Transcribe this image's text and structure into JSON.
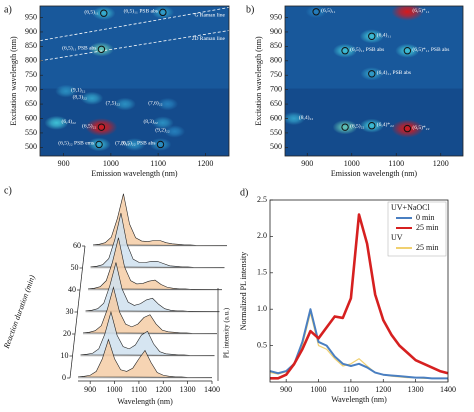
{
  "chart_data": [
    {
      "type": "heatmap",
      "panel_label": "a)",
      "x_label": "Emission wavelength (nm)",
      "y_label": "Excitation wavelength (nm)",
      "xlim": [
        850,
        1250
      ],
      "ylim": [
        470,
        990
      ],
      "xticks": [
        900,
        1000,
        1100,
        1200
      ],
      "yticks": [
        500,
        550,
        600,
        650,
        700,
        750,
        800,
        850,
        900,
        950
      ],
      "peaks": [
        {
          "label": "(6,5)₁₁",
          "x": 985,
          "y": 965,
          "intensity": 0.45,
          "circle": true
        },
        {
          "label": "(6,5)₁₁ PSB abs",
          "x": 1110,
          "y": 968,
          "intensity": 0.4,
          "circle": true
        },
        {
          "label": "(6,5)₁₁ PSB abs",
          "x": 980,
          "y": 840,
          "intensity": 0.55,
          "circle": true
        },
        {
          "label": "(9,1)₂₂",
          "x": 905,
          "y": 695,
          "intensity": 0.35
        },
        {
          "label": "(8,3)₂₂",
          "x": 960,
          "y": 670,
          "intensity": 0.4
        },
        {
          "label": "(7,5)₂₂",
          "x": 1030,
          "y": 650,
          "intensity": 0.35
        },
        {
          "label": "(7,6)₂₂",
          "x": 1120,
          "y": 650,
          "intensity": 0.3
        },
        {
          "label": "(6,4)₂₂",
          "x": 885,
          "y": 585,
          "intensity": 0.5
        },
        {
          "label": "(6,5)₂₂",
          "x": 980,
          "y": 570,
          "intensity": 1.0,
          "circle": true
        },
        {
          "label": "(8,3)₂₂",
          "x": 1110,
          "y": 585,
          "intensity": 0.35
        },
        {
          "label": "(9,2)₂₂",
          "x": 1135,
          "y": 555,
          "intensity": 0.3
        },
        {
          "label": "(6,5)₂₂ PSB ems",
          "x": 975,
          "y": 510,
          "intensity": 0.45,
          "circle": true
        },
        {
          "label": "(7,3)₂₂",
          "x": 1050,
          "y": 510,
          "intensity": 0.35
        },
        {
          "label": "(6,5)₂₂ PSB abs",
          "x": 1105,
          "y": 510,
          "intensity": 0.35,
          "circle": true
        }
      ],
      "lines": [
        {
          "label": "G Raman line",
          "x": [
            850,
            1250
          ],
          "y": [
            870,
            985
          ]
        },
        {
          "label": "2D Raman line",
          "x": [
            850,
            1250
          ],
          "y": [
            800,
            905
          ]
        }
      ]
    },
    {
      "type": "heatmap",
      "panel_label": "b)",
      "x_label": "Emission wavelength (nm)",
      "y_label": "Excitation wavelength (nm)",
      "xlim": [
        850,
        1250
      ],
      "ylim": [
        470,
        990
      ],
      "xticks": [
        900,
        1000,
        1100,
        1200
      ],
      "yticks": [
        500,
        550,
        600,
        650,
        700,
        750,
        800,
        850,
        900,
        950
      ],
      "peaks": [
        {
          "label": "(6,5)₁₁",
          "x": 920,
          "y": 970,
          "intensity": 0.3,
          "circle": true
        },
        {
          "label": "(6,5)*₁₁",
          "x": 1125,
          "y": 970,
          "intensity": 1.0
        },
        {
          "label": "(6,4)₁₁",
          "x": 1045,
          "y": 885,
          "intensity": 0.5,
          "circle": true
        },
        {
          "label": "(6,5)₁₁ PSB abs",
          "x": 985,
          "y": 835,
          "intensity": 0.5,
          "circle": true
        },
        {
          "label": "(6,5)*₁₁ PSB abs",
          "x": 1125,
          "y": 835,
          "intensity": 0.5,
          "circle": true
        },
        {
          "label": "(6,4)₁₁ PSB abs",
          "x": 1045,
          "y": 755,
          "intensity": 0.4,
          "circle": true
        },
        {
          "label": "(8,4)₂₂",
          "x": 870,
          "y": 600,
          "intensity": 0.4
        },
        {
          "label": "(6,5)₂₂",
          "x": 985,
          "y": 570,
          "intensity": 0.55,
          "circle": true
        },
        {
          "label": "(6,4)*₂₂",
          "x": 1045,
          "y": 575,
          "intensity": 0.5,
          "circle": true
        },
        {
          "label": "(6,5)*₂₂",
          "x": 1125,
          "y": 565,
          "intensity": 1.0,
          "circle": true
        }
      ],
      "lines": []
    },
    {
      "type": "waterfall",
      "panel_label": "c)",
      "x_label": "Wavelength (nm)",
      "y_label": "Reaction duration (min)",
      "z_label": "PL intensity (a.u.)",
      "xlim": [
        850,
        1400
      ],
      "xticks": [
        900,
        1000,
        1100,
        1200,
        1300,
        1400
      ],
      "ylim": [
        0,
        60
      ],
      "yticks": [
        0,
        10,
        20,
        30,
        40,
        50,
        60
      ],
      "zlim": [
        0,
        1
      ],
      "fill_colors": [
        "#f5cda6",
        "#cfe1ef"
      ],
      "x": [
        850,
        875,
        900,
        925,
        950,
        975,
        1000,
        1025,
        1050,
        1075,
        1100,
        1125,
        1150,
        1175,
        1200,
        1225,
        1250,
        1275,
        1300,
        1325,
        1350,
        1375,
        1400
      ],
      "durations": [
        0,
        10,
        20,
        30,
        40,
        50,
        60
      ],
      "traces": [
        [
          0.02,
          0.03,
          0.05,
          0.12,
          0.35,
          0.7,
          0.35,
          0.15,
          0.12,
          0.18,
          0.35,
          0.5,
          0.28,
          0.1,
          0.05,
          0.03,
          0.02,
          0.02,
          0.01,
          0.01,
          0.01,
          0.01,
          0.01
        ],
        [
          0.02,
          0.03,
          0.05,
          0.13,
          0.4,
          0.8,
          0.38,
          0.17,
          0.13,
          0.2,
          0.38,
          0.45,
          0.22,
          0.08,
          0.04,
          0.03,
          0.02,
          0.02,
          0.01,
          0.01,
          0.01,
          0.01,
          0.01
        ],
        [
          0.02,
          0.03,
          0.06,
          0.15,
          0.45,
          0.85,
          0.4,
          0.18,
          0.13,
          0.18,
          0.3,
          0.35,
          0.18,
          0.07,
          0.04,
          0.03,
          0.02,
          0.02,
          0.01,
          0.01,
          0.01,
          0.01,
          0.01
        ],
        [
          0.02,
          0.03,
          0.06,
          0.16,
          0.48,
          0.9,
          0.42,
          0.18,
          0.12,
          0.15,
          0.22,
          0.25,
          0.14,
          0.06,
          0.03,
          0.02,
          0.02,
          0.01,
          0.01,
          0.01,
          0.01,
          0.01,
          0.01
        ],
        [
          0.02,
          0.03,
          0.06,
          0.17,
          0.5,
          0.95,
          0.42,
          0.17,
          0.11,
          0.12,
          0.16,
          0.18,
          0.1,
          0.05,
          0.03,
          0.02,
          0.02,
          0.01,
          0.01,
          0.01,
          0.01,
          0.01,
          0.01
        ],
        [
          0.02,
          0.03,
          0.06,
          0.17,
          0.52,
          1.0,
          0.43,
          0.16,
          0.1,
          0.1,
          0.12,
          0.12,
          0.08,
          0.04,
          0.03,
          0.02,
          0.02,
          0.01,
          0.01,
          0.01,
          0.01,
          0.01,
          0.01
        ],
        [
          0.02,
          0.03,
          0.06,
          0.16,
          0.5,
          0.95,
          0.4,
          0.15,
          0.09,
          0.08,
          0.1,
          0.1,
          0.06,
          0.04,
          0.03,
          0.02,
          0.02,
          0.01,
          0.01,
          0.01,
          0.01,
          0.01,
          0.01
        ]
      ]
    },
    {
      "type": "line",
      "panel_label": "d)",
      "x_label": "Wavelength (nm)",
      "y_label": "Normalized PL intensity",
      "xlim": [
        850,
        1400
      ],
      "xticks": [
        900,
        1000,
        1100,
        1200,
        1300,
        1400
      ],
      "ylim": [
        0,
        2.5
      ],
      "yticks": [
        0.5,
        {
          "value": 1,
          "label": "1.0"
        },
        1.5,
        {
          "value": 2,
          "label": "2.0"
        },
        2.5
      ],
      "legend": "upper right",
      "legend_titles": [
        "UV+NaOCl",
        "UV"
      ],
      "x": [
        850,
        875,
        900,
        925,
        950,
        975,
        1000,
        1025,
        1050,
        1075,
        1100,
        1125,
        1150,
        1175,
        1200,
        1225,
        1250,
        1275,
        1300,
        1325,
        1350,
        1375,
        1400
      ],
      "series": [
        {
          "name": "0 min",
          "color": "#4a7fc1",
          "values": [
            0.15,
            0.12,
            0.15,
            0.25,
            0.55,
            1.0,
            0.55,
            0.5,
            0.35,
            0.25,
            0.22,
            0.25,
            0.2,
            0.13,
            0.1,
            0.09,
            0.08,
            0.07,
            0.06,
            0.06,
            0.05,
            0.05,
            0.05
          ]
        },
        {
          "name": "25 min",
          "color": "#d62020",
          "values": [
            0.05,
            0.05,
            0.1,
            0.25,
            0.45,
            0.7,
            0.6,
            0.75,
            0.9,
            0.88,
            1.15,
            2.3,
            1.9,
            1.2,
            0.85,
            0.65,
            0.5,
            0.4,
            0.3,
            0.25,
            0.2,
            0.15,
            0.12
          ]
        },
        {
          "name": "25 min",
          "color": "#f0d070",
          "values": [
            0.13,
            0.11,
            0.14,
            0.23,
            0.5,
            0.95,
            0.5,
            0.45,
            0.32,
            0.22,
            0.25,
            0.32,
            0.22,
            0.13,
            0.1,
            0.08,
            0.07,
            0.06,
            0.06,
            0.05,
            0.05,
            0.05,
            0.05
          ]
        }
      ]
    }
  ]
}
